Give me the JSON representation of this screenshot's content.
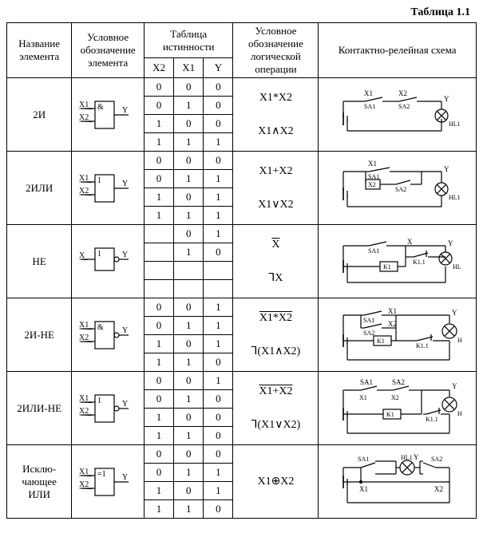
{
  "title": "Таблица 1.1",
  "headers": {
    "name": "Название элемента",
    "symbol": "Условное обозначение элемента",
    "truth_table": "Таблица истинности",
    "tt_cols": {
      "x2": "X2",
      "x1": "X1",
      "y": "Y"
    },
    "logic_op": "Условное обозначение логической операции",
    "relay": "Контактно-релейная схема"
  },
  "gates": {
    "and": {
      "name": "2И",
      "op": "&",
      "inputs": [
        "X1",
        "X2"
      ],
      "output": "Y",
      "tt": [
        [
          "0",
          "0",
          "0"
        ],
        [
          "0",
          "1",
          "0"
        ],
        [
          "1",
          "0",
          "0"
        ],
        [
          "1",
          "1",
          "1"
        ]
      ],
      "expr1": "X1*X2",
      "expr2": "X1∧X2",
      "over1": false,
      "over2": false
    },
    "or": {
      "name": "2ИЛИ",
      "op": "1",
      "inputs": [
        "X1",
        "X2"
      ],
      "output": "Y",
      "tt": [
        [
          "0",
          "0",
          "0"
        ],
        [
          "0",
          "1",
          "1"
        ],
        [
          "1",
          "0",
          "1"
        ],
        [
          "1",
          "1",
          "1"
        ]
      ],
      "expr1": "X1+X2",
      "expr2": "X1∨X2",
      "over1": false,
      "over2": false
    },
    "not": {
      "name": "НЕ",
      "op": "1",
      "inputs": [
        "X"
      ],
      "output": "Y",
      "tt": [
        [
          "",
          "0",
          "1"
        ],
        [
          "",
          "1",
          "0"
        ],
        [
          "",
          "",
          ""
        ],
        [
          "",
          "",
          ""
        ]
      ],
      "expr1": "X",
      "expr2": "⅂X",
      "over1": true,
      "over2": false
    },
    "nand": {
      "name": "2И-НЕ",
      "op": "&",
      "inputs": [
        "X1",
        "X2"
      ],
      "output": "Y",
      "tt": [
        [
          "0",
          "0",
          "1"
        ],
        [
          "0",
          "1",
          "1"
        ],
        [
          "1",
          "0",
          "1"
        ],
        [
          "1",
          "1",
          "0"
        ]
      ],
      "expr1": "X1*X2",
      "expr2": "⅂(X1∧X2)",
      "over1": true,
      "over2": false
    },
    "nor": {
      "name": "2ИЛИ-НЕ",
      "op": "1",
      "inputs": [
        "X1",
        "X2"
      ],
      "output": "Y",
      "tt": [
        [
          "0",
          "0",
          "1"
        ],
        [
          "0",
          "1",
          "0"
        ],
        [
          "1",
          "0",
          "0"
        ],
        [
          "1",
          "1",
          "0"
        ]
      ],
      "expr1": "X1+X2",
      "expr2": "⅂(X1∨X2)",
      "over1": true,
      "over2": false
    },
    "xor": {
      "name": "Исклю-\nчающее\nИЛИ",
      "op": "=1",
      "inputs": [
        "X1",
        "X2"
      ],
      "output": "Y",
      "tt": [
        [
          "0",
          "0",
          "0"
        ],
        [
          "0",
          "1",
          "1"
        ],
        [
          "1",
          "0",
          "1"
        ],
        [
          "1",
          "1",
          "0"
        ]
      ],
      "expr1": "X1⊕X2",
      "expr2": "",
      "over1": false,
      "over2": false
    }
  },
  "style": {
    "stroke": "#000000",
    "stroke_w": 1.2,
    "font": "Times New Roman",
    "gate_font": 11,
    "relay_font": 9
  }
}
